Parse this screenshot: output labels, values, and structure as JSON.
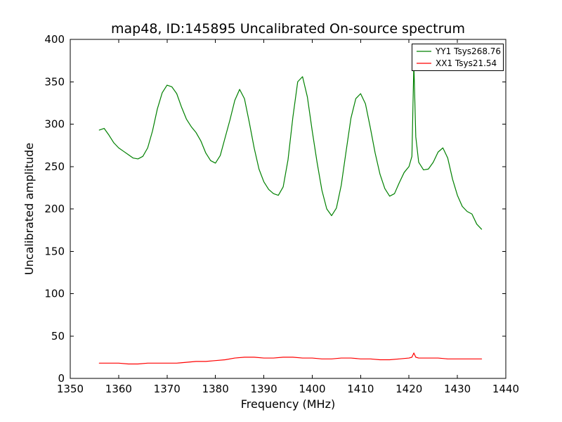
{
  "chart_data": {
    "type": "line",
    "title": "map48, ID:145895 Uncalibrated On-source spectrum",
    "xlabel": "Frequency (MHz)",
    "ylabel": "Uncalibrated amplitude",
    "xlim": [
      1350,
      1440
    ],
    "ylim": [
      0,
      400
    ],
    "xticks": [
      1350,
      1360,
      1370,
      1380,
      1390,
      1400,
      1410,
      1420,
      1430,
      1440
    ],
    "yticks": [
      0,
      50,
      100,
      150,
      200,
      250,
      300,
      350,
      400
    ],
    "grid": false,
    "legend_position": "upper right",
    "series": [
      {
        "name": "YY1 Tsys268.76",
        "color": "#008000",
        "x": [
          1356,
          1357,
          1358,
          1359,
          1360,
          1361,
          1362,
          1363,
          1364,
          1365,
          1366,
          1367,
          1368,
          1369,
          1370,
          1371,
          1372,
          1373,
          1374,
          1375,
          1376,
          1377,
          1378,
          1379,
          1380,
          1381,
          1382,
          1383,
          1384,
          1385,
          1386,
          1387,
          1388,
          1389,
          1390,
          1391,
          1392,
          1393,
          1394,
          1395,
          1396,
          1397,
          1398,
          1399,
          1400,
          1401,
          1402,
          1403,
          1404,
          1405,
          1406,
          1407,
          1408,
          1409,
          1410,
          1411,
          1412,
          1413,
          1414,
          1415,
          1416,
          1417,
          1418,
          1419,
          1420,
          1420.6,
          1421,
          1421.4,
          1422,
          1423,
          1424,
          1425,
          1426,
          1427,
          1428,
          1429,
          1430,
          1431,
          1432,
          1433,
          1434,
          1435
        ],
        "y": [
          293,
          295,
          287,
          278,
          272,
          268,
          264,
          260,
          259,
          262,
          272,
          292,
          318,
          337,
          346,
          344,
          336,
          320,
          306,
          297,
          290,
          280,
          266,
          257,
          254,
          263,
          284,
          305,
          328,
          341,
          330,
          302,
          272,
          247,
          232,
          223,
          218,
          216,
          226,
          258,
          308,
          350,
          356,
          332,
          292,
          255,
          222,
          200,
          192,
          201,
          228,
          268,
          307,
          330,
          336,
          324,
          296,
          266,
          241,
          224,
          215,
          218,
          231,
          243,
          250,
          262,
          372,
          285,
          255,
          246,
          247,
          255,
          267,
          272,
          260,
          235,
          216,
          203,
          197,
          194,
          182,
          176
        ]
      },
      {
        "name": "XX1 Tsys21.54",
        "color": "#ff0000",
        "x": [
          1356,
          1358,
          1360,
          1362,
          1364,
          1366,
          1368,
          1370,
          1372,
          1374,
          1376,
          1378,
          1380,
          1382,
          1384,
          1386,
          1388,
          1390,
          1392,
          1394,
          1396,
          1398,
          1400,
          1402,
          1404,
          1406,
          1408,
          1410,
          1412,
          1414,
          1416,
          1418,
          1420,
          1420.6,
          1421,
          1421.4,
          1422,
          1424,
          1426,
          1428,
          1430,
          1432,
          1434,
          1435
        ],
        "y": [
          18,
          18,
          18,
          17,
          17,
          18,
          18,
          18,
          18,
          19,
          20,
          20,
          21,
          22,
          24,
          25,
          25,
          24,
          24,
          25,
          25,
          24,
          24,
          23,
          23,
          24,
          24,
          23,
          23,
          22,
          22,
          23,
          24,
          25,
          30,
          25,
          24,
          24,
          24,
          23,
          23,
          23,
          23,
          23
        ]
      }
    ]
  }
}
